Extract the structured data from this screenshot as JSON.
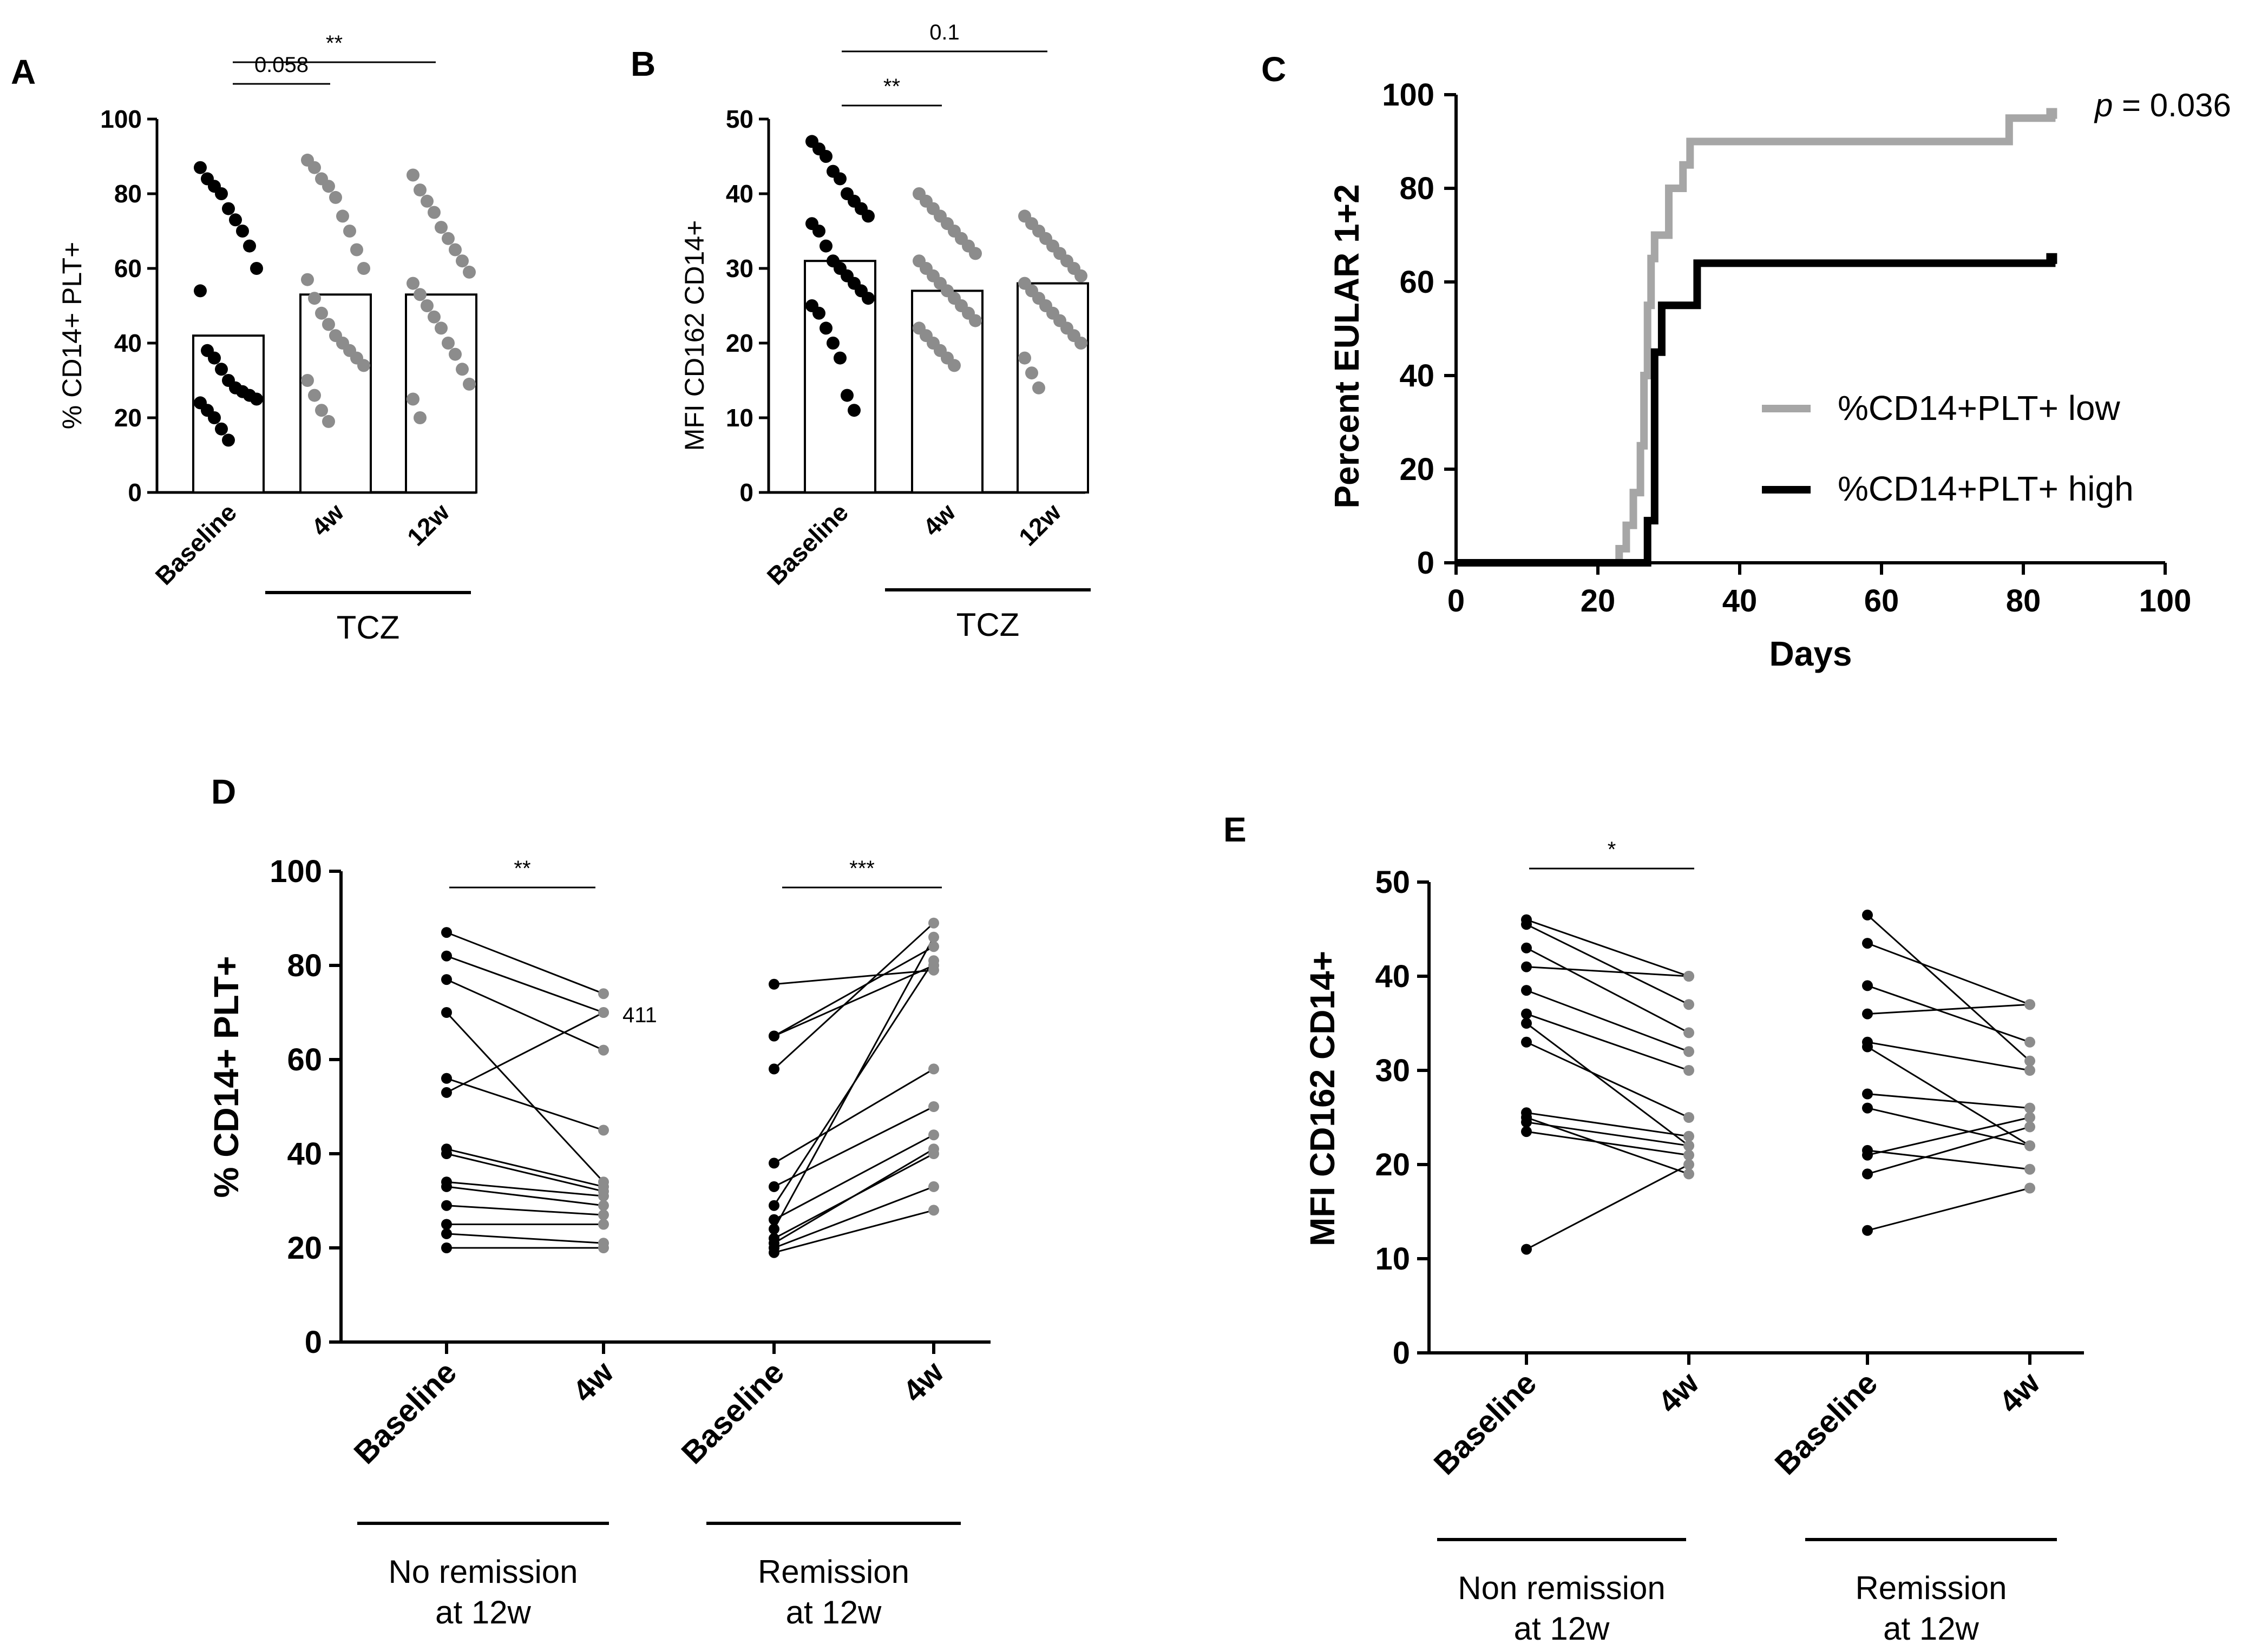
{
  "colors": {
    "baseline": "#000000",
    "treated": "#8c8c8c",
    "line": "#000000",
    "km_low": "#a6a6a6",
    "km_high": "#000000"
  },
  "chart_data": [
    {
      "panel": "A",
      "type": "scatter",
      "ylabel": "% CD14+ PLT+",
      "ylim": [
        0,
        100
      ],
      "yticks": [
        "0",
        "20",
        "40",
        "60",
        "80",
        "100"
      ],
      "categories": [
        "Baseline",
        "4w",
        "12w"
      ],
      "group_label": "TCZ",
      "means": [
        42,
        53,
        53
      ],
      "points": [
        [
          87,
          84,
          82,
          80,
          76,
          73,
          70,
          66,
          60,
          54,
          38,
          36,
          33,
          30,
          28,
          27,
          26,
          25,
          24,
          22,
          20,
          17,
          14
        ],
        [
          89,
          87,
          84,
          82,
          79,
          74,
          70,
          65,
          60,
          57,
          52,
          48,
          45,
          42,
          40,
          38,
          36,
          34,
          30,
          26,
          22,
          19
        ],
        [
          85,
          81,
          78,
          75,
          71,
          68,
          65,
          62,
          59,
          56,
          53,
          50,
          47,
          44,
          40,
          37,
          33,
          29,
          25,
          20
        ]
      ],
      "significance": [
        {
          "label": "0.058",
          "from": "Baseline",
          "to": "4w"
        },
        {
          "label": "**",
          "from": "Baseline",
          "to": "12w"
        }
      ]
    },
    {
      "panel": "B",
      "type": "scatter",
      "ylabel": "MFI CD162 CD14+",
      "ylim": [
        0,
        50
      ],
      "yticks": [
        "0",
        "10",
        "20",
        "30",
        "40",
        "50"
      ],
      "categories": [
        "Baseline",
        "4w",
        "12w"
      ],
      "group_label": "TCZ",
      "means": [
        31,
        27,
        28
      ],
      "points": [
        [
          47,
          46,
          45,
          43,
          42,
          40,
          39,
          38,
          37,
          36,
          35,
          33,
          31,
          30,
          29,
          28,
          27,
          26,
          25,
          24,
          22,
          20,
          18,
          13,
          11
        ],
        [
          40,
          39,
          38,
          37,
          36,
          35,
          34,
          33,
          32,
          31,
          30,
          29,
          28,
          27,
          26,
          25,
          24,
          23,
          22,
          21,
          20,
          19,
          18,
          17
        ],
        [
          37,
          36,
          35,
          34,
          33,
          32,
          31,
          30,
          29,
          28,
          27,
          26,
          25,
          24,
          23,
          22,
          21,
          20,
          18,
          16,
          14
        ]
      ],
      "significance": [
        {
          "label": "**",
          "from": "Baseline",
          "to": "4w"
        },
        {
          "label": "0.1",
          "from": "Baseline",
          "to": "12w"
        }
      ]
    },
    {
      "panel": "C",
      "type": "line",
      "xlabel": "Days",
      "ylabel": "Percent EULAR 1+2",
      "xlim": [
        0,
        100
      ],
      "ylim": [
        0,
        100
      ],
      "xticks": [
        "0",
        "20",
        "40",
        "60",
        "80",
        "100"
      ],
      "yticks": [
        "0",
        "20",
        "40",
        "60",
        "80",
        "100"
      ],
      "annotation_p": "p",
      "annotation_value": " = 0.036",
      "series": [
        {
          "name": "%CD14+PLT+ low",
          "points": [
            [
              0,
              0
            ],
            [
              23,
              0
            ],
            [
              23,
              3
            ],
            [
              24,
              3
            ],
            [
              24,
              8
            ],
            [
              25,
              8
            ],
            [
              25,
              15
            ],
            [
              26,
              15
            ],
            [
              26,
              25
            ],
            [
              26.5,
              25
            ],
            [
              26.5,
              40
            ],
            [
              27,
              40
            ],
            [
              27,
              55
            ],
            [
              27.5,
              55
            ],
            [
              27.5,
              65
            ],
            [
              28,
              65
            ],
            [
              28,
              70
            ],
            [
              30,
              70
            ],
            [
              30,
              80
            ],
            [
              32,
              80
            ],
            [
              32,
              85
            ],
            [
              33,
              85
            ],
            [
              33,
              90
            ],
            [
              78,
              90
            ],
            [
              78,
              95
            ],
            [
              84,
              95
            ],
            [
              84,
              96
            ]
          ]
        },
        {
          "name": "%CD14+PLT+ high",
          "points": [
            [
              0,
              0
            ],
            [
              26,
              0
            ],
            [
              26,
              0
            ],
            [
              27,
              0
            ],
            [
              27,
              9
            ],
            [
              28,
              9
            ],
            [
              28,
              45
            ],
            [
              29,
              45
            ],
            [
              29,
              55
            ],
            [
              34,
              55
            ],
            [
              34,
              64
            ],
            [
              84,
              64
            ],
            [
              84,
              65
            ]
          ]
        }
      ]
    },
    {
      "panel": "D",
      "type": "line",
      "ylabel": "% CD14+ PLT+",
      "ylim": [
        0,
        100
      ],
      "yticks": [
        "0",
        "20",
        "40",
        "60",
        "80",
        "100"
      ],
      "categories": [
        "Baseline",
        "4w",
        "Baseline",
        "4w"
      ],
      "group_labels": [
        [
          "No remission",
          "at 12w"
        ],
        [
          "Remission",
          "at 12w"
        ]
      ],
      "point_label": "411",
      "significance": [
        "**",
        "***"
      ],
      "groups": [
        {
          "name": "No remission at 12w",
          "pairs": [
            [
              87,
              74
            ],
            [
              82,
              70
            ],
            [
              77,
              62
            ],
            [
              70,
              34
            ],
            [
              56,
              45
            ],
            [
              53,
              70
            ],
            [
              41,
              33
            ],
            [
              40,
              32
            ],
            [
              34,
              31
            ],
            [
              33,
              29
            ],
            [
              29,
              27
            ],
            [
              25,
              25
            ],
            [
              23,
              21
            ],
            [
              20,
              20
            ]
          ]
        },
        {
          "name": "Remission at 12w",
          "pairs": [
            [
              76,
              79
            ],
            [
              65,
              84
            ],
            [
              65,
              80
            ],
            [
              58,
              89
            ],
            [
              38,
              58
            ],
            [
              33,
              50
            ],
            [
              29,
              81
            ],
            [
              26,
              44
            ],
            [
              24,
              86
            ],
            [
              22,
              40
            ],
            [
              21,
              41
            ],
            [
              20,
              33
            ],
            [
              19,
              28
            ]
          ]
        }
      ]
    },
    {
      "panel": "E",
      "type": "line",
      "ylabel": "MFI CD162 CD14+",
      "ylim": [
        0,
        50
      ],
      "yticks": [
        "0",
        "10",
        "20",
        "30",
        "40",
        "50"
      ],
      "categories": [
        "Baseline",
        "4w",
        "Baseline",
        "4w"
      ],
      "group_labels": [
        [
          "Non remission",
          "at 12w"
        ],
        [
          "Remission",
          "at 12w"
        ]
      ],
      "significance": [
        "*"
      ],
      "groups": [
        {
          "name": "Non remission at 12w",
          "pairs": [
            [
              46,
              40
            ],
            [
              45.5,
              37
            ],
            [
              43,
              34
            ],
            [
              41,
              40
            ],
            [
              38.5,
              32
            ],
            [
              36,
              30
            ],
            [
              35,
              22
            ],
            [
              33,
              25
            ],
            [
              25.5,
              23
            ],
            [
              25,
              19
            ],
            [
              24.5,
              22
            ],
            [
              23.5,
              21
            ],
            [
              11,
              20
            ]
          ]
        },
        {
          "name": "Remission at 12w",
          "pairs": [
            [
              46.5,
              31
            ],
            [
              43.5,
              37
            ],
            [
              39,
              33
            ],
            [
              36,
              37
            ],
            [
              33,
              30
            ],
            [
              32.5,
              22
            ],
            [
              27.5,
              26
            ],
            [
              26,
              22
            ],
            [
              21.5,
              19.5
            ],
            [
              21,
              25
            ],
            [
              19,
              24
            ],
            [
              13,
              17.5
            ]
          ]
        }
      ]
    }
  ]
}
